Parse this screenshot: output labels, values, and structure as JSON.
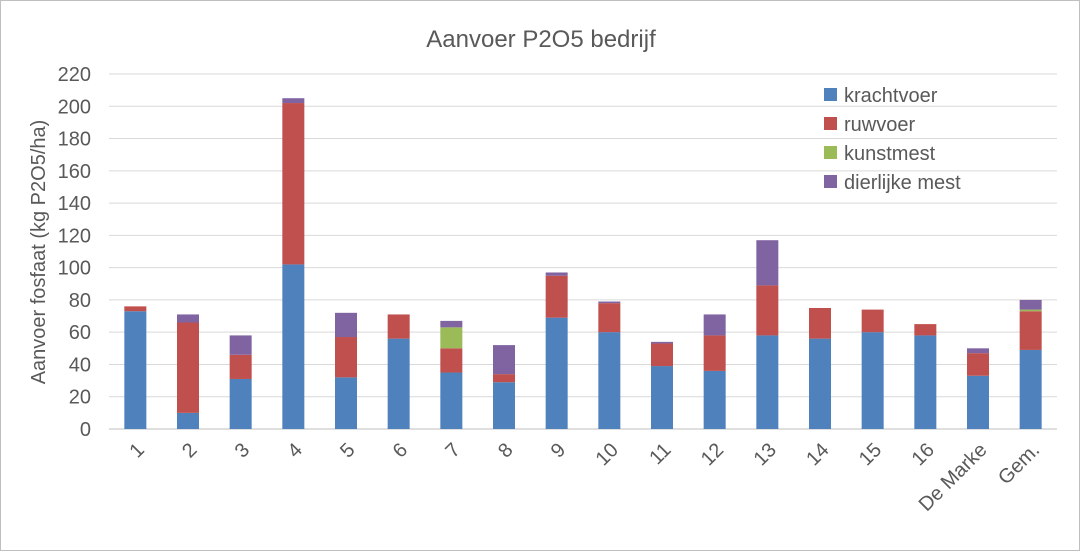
{
  "chart_data": {
    "type": "bar",
    "stacked": true,
    "title": "Aanvoer P2O5 bedrijf",
    "xlabel": "",
    "ylabel": "Aanvoer fosfaat (kg P2O5/ha)",
    "ylim": [
      0,
      220
    ],
    "yticks": [
      0,
      20,
      40,
      60,
      80,
      100,
      120,
      140,
      160,
      180,
      200,
      220
    ],
    "grid": true,
    "legend_position": "top-right",
    "categories": [
      "1",
      "2",
      "3",
      "4",
      "5",
      "6",
      "7",
      "8",
      "9",
      "10",
      "11",
      "12",
      "13",
      "14",
      "15",
      "16",
      "De Marke",
      "Gem."
    ],
    "series": [
      {
        "name": "krachtvoer",
        "color": "#4f81bd",
        "values": [
          73,
          10,
          31,
          102,
          32,
          56,
          35,
          29,
          69,
          60,
          39,
          36,
          58,
          56,
          60,
          58,
          33,
          49
        ]
      },
      {
        "name": "ruwvoer",
        "color": "#c0504d",
        "values": [
          3,
          56,
          15,
          100,
          25,
          15,
          15,
          5,
          26,
          18,
          14,
          22,
          31,
          19,
          14,
          7,
          14,
          24
        ]
      },
      {
        "name": "kunstmest",
        "color": "#9bbb59",
        "values": [
          0,
          0,
          0,
          0,
          0,
          0,
          13,
          0,
          0,
          0,
          0,
          0,
          0,
          0,
          0,
          0,
          0,
          1
        ]
      },
      {
        "name": "dierlijke mest",
        "color": "#8064a2",
        "values": [
          0,
          5,
          12,
          3,
          15,
          0,
          4,
          18,
          2,
          1,
          1,
          13,
          28,
          0,
          0,
          0,
          3,
          6
        ]
      }
    ]
  }
}
